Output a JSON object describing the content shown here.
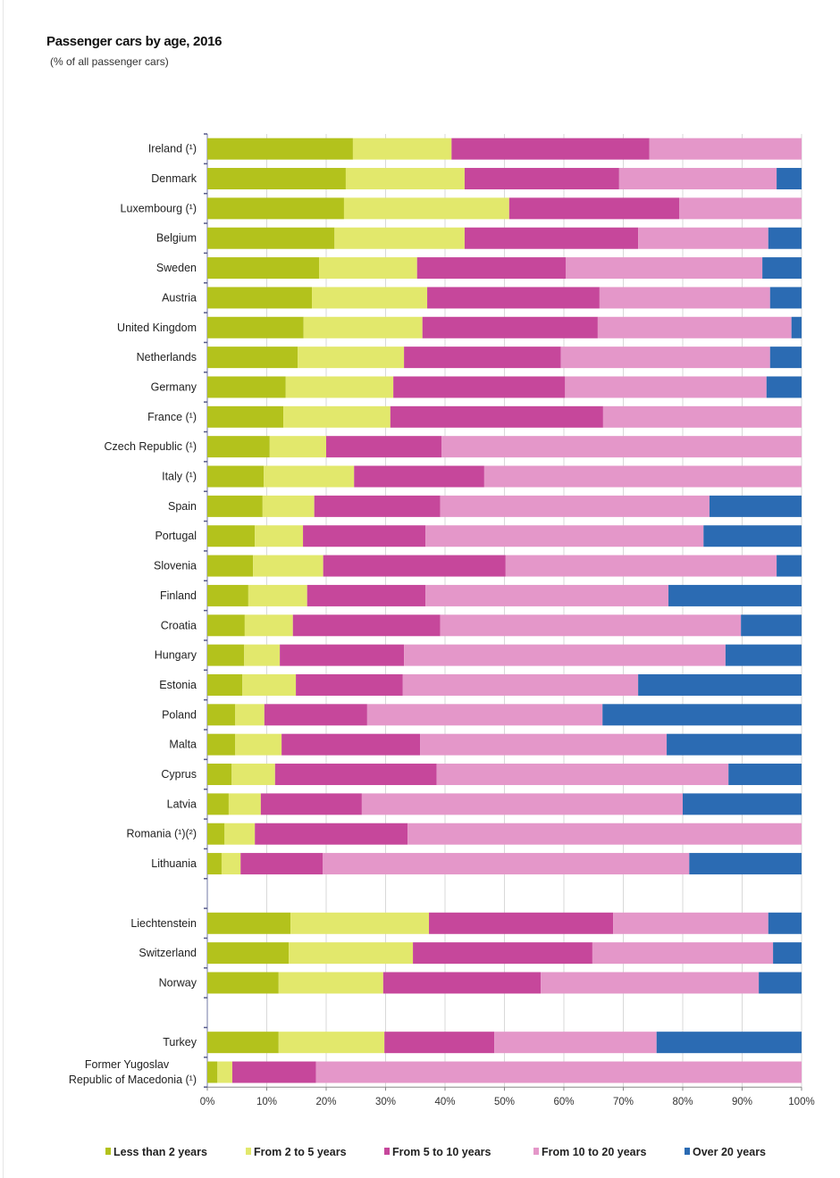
{
  "chart_data": {
    "type": "bar",
    "orientation": "horizontal",
    "stacked": true,
    "title": "Passenger cars by age, 2016",
    "subtitle": "(% of all passenger cars)",
    "xlim": [
      0,
      100
    ],
    "x_ticks": [
      "0%",
      "10%",
      "20%",
      "30%",
      "40%",
      "50%",
      "60%",
      "70%",
      "80%",
      "90%",
      "100%"
    ],
    "grid": true,
    "legend_position": "bottom",
    "categories": [
      "Ireland (¹)",
      "Denmark",
      "Luxembourg (¹)",
      "Belgium",
      "Sweden",
      "Austria",
      "United Kingdom",
      "Netherlands",
      "Germany",
      "France (¹)",
      "Czech Republic (¹)",
      "Italy (¹)",
      "Spain",
      "Portugal",
      "Slovenia",
      "Finland",
      "Croatia",
      "Hungary",
      "Estonia",
      "Poland",
      "Malta",
      "Cyprus",
      "Latvia",
      "Romania (¹)(²)",
      "Lithuania",
      "Liechtenstein",
      "Switzerland",
      "Norway",
      "Turkey",
      "Former Yugoslav\nRepublic of Macedonia  (¹)"
    ],
    "series": [
      {
        "name": "Less than 2 years",
        "color": "#b3c21c",
        "values": [
          24.5,
          23.3,
          23.0,
          21.4,
          18.8,
          17.6,
          16.2,
          15.2,
          13.2,
          12.8,
          10.5,
          9.5,
          9.3,
          8.0,
          7.7,
          6.9,
          6.3,
          6.2,
          5.9,
          4.7,
          4.7,
          4.1,
          3.6,
          2.9,
          2.4,
          14.0,
          13.7,
          12.0,
          12.0,
          1.7
        ]
      },
      {
        "name": "From 2 to 5 years",
        "color": "#e2e86c",
        "values": [
          16.6,
          20.0,
          27.8,
          21.9,
          16.5,
          19.4,
          20.0,
          17.9,
          18.1,
          18.0,
          9.5,
          15.2,
          8.7,
          8.1,
          11.8,
          9.9,
          8.1,
          6.0,
          9.0,
          4.9,
          7.8,
          7.3,
          5.4,
          5.1,
          3.2,
          23.3,
          20.9,
          17.6,
          17.8,
          2.5
        ]
      },
      {
        "name": "From 5 to 10 years",
        "color": "#c6479b",
        "values": [
          33.3,
          26.0,
          28.6,
          29.2,
          25.0,
          29.0,
          29.5,
          26.4,
          28.9,
          35.8,
          19.4,
          21.9,
          21.2,
          20.6,
          30.7,
          19.9,
          24.8,
          20.9,
          18.0,
          17.3,
          23.3,
          27.2,
          17.0,
          25.7,
          13.8,
          31.0,
          30.2,
          26.5,
          18.5,
          14.1
        ]
      },
      {
        "name": "From 10 to 20 years",
        "color": "#e497c9",
        "values": [
          25.6,
          26.5,
          20.6,
          21.9,
          33.1,
          28.7,
          32.6,
          35.2,
          33.9,
          33.4,
          60.6,
          53.4,
          45.3,
          46.8,
          45.6,
          40.9,
          50.6,
          54.1,
          39.6,
          39.6,
          41.5,
          49.1,
          54.0,
          66.3,
          61.7,
          26.1,
          30.4,
          36.7,
          27.3,
          81.7
        ]
      },
      {
        "name": "Over 20 years",
        "color": "#2b6bb3",
        "values": [
          0,
          4.2,
          0,
          5.6,
          6.6,
          5.3,
          1.7,
          5.3,
          5.9,
          0,
          0,
          0,
          15.5,
          16.5,
          4.2,
          22.4,
          10.2,
          12.8,
          27.5,
          33.5,
          22.7,
          12.3,
          20.0,
          0,
          18.9,
          5.6,
          4.8,
          7.2,
          24.4,
          0
        ]
      }
    ]
  }
}
